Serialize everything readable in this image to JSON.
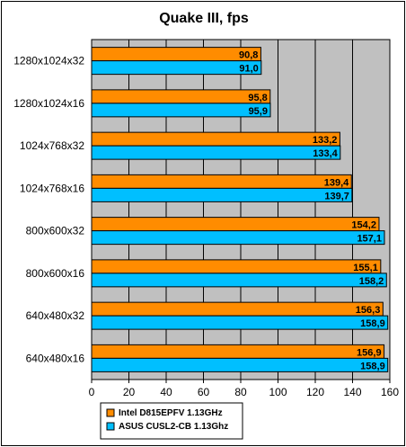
{
  "chart_data": {
    "type": "bar",
    "orientation": "horizontal",
    "title": "Quake III, fps",
    "categories": [
      "1280x1024x32",
      "1280x1024x16",
      "1024x768x32",
      "1024x768x16",
      "800x600x32",
      "800x600x16",
      "640x480x32",
      "640x480x16"
    ],
    "series": [
      {
        "name": "Intel D815EPFV 1.13GHz",
        "color": "#FF8C00",
        "values": [
          90.8,
          95.8,
          133.2,
          139.4,
          154.2,
          155.1,
          156.3,
          156.9
        ],
        "labels": [
          "90,8",
          "95,8",
          "133,2",
          "139,4",
          "154,2",
          "155,1",
          "156,3",
          "156,9"
        ]
      },
      {
        "name": "ASUS CUSL2-CB 1.13Ghz",
        "color": "#00BFFF",
        "values": [
          91.0,
          95.9,
          133.4,
          139.7,
          157.1,
          158.2,
          158.9,
          158.9
        ],
        "labels": [
          "91,0",
          "95,9",
          "133,4",
          "139,7",
          "157,1",
          "158,2",
          "158,9",
          "158,9"
        ]
      }
    ],
    "xlim": [
      0,
      160
    ],
    "xticks": [
      "0",
      "20",
      "40",
      "60",
      "80",
      "100",
      "120",
      "140",
      "160"
    ],
    "grid": true,
    "plot_background": "#C0C0C0",
    "legend_position": "bottom-center"
  }
}
